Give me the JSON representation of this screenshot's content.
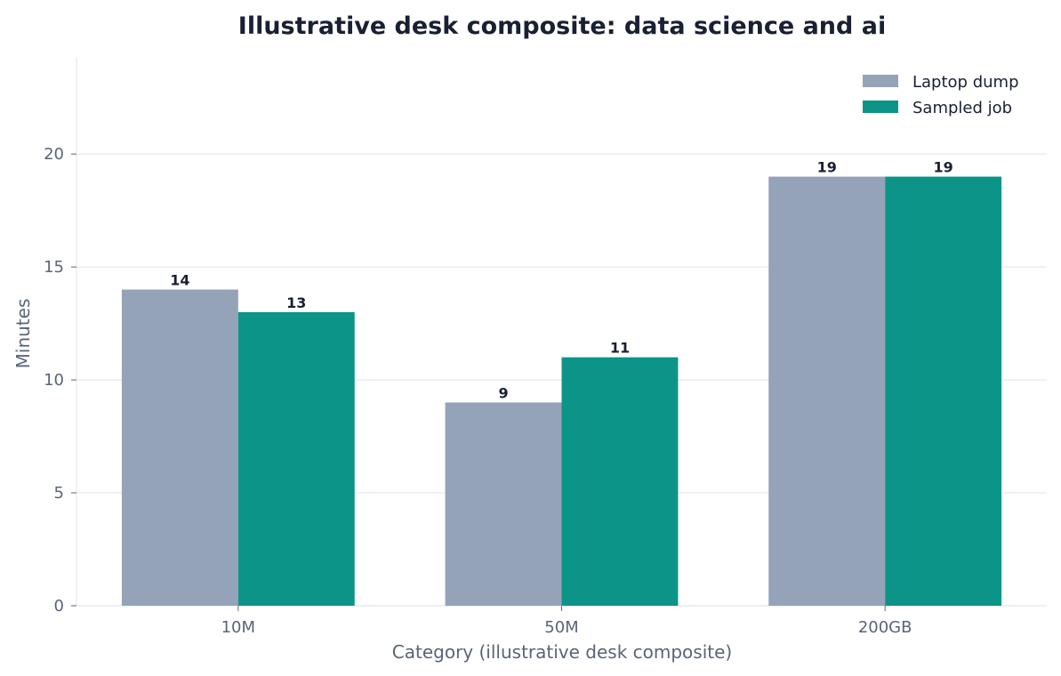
{
  "chart_data": {
    "type": "bar",
    "title": "Illustrative desk composite: data science and ai",
    "xlabel": "Category (illustrative desk composite)",
    "ylabel": "Minutes",
    "categories": [
      "10M",
      "50M",
      "200GB"
    ],
    "series": [
      {
        "name": "Laptop dump",
        "values": [
          14,
          9,
          19
        ],
        "color": "#94a3b8"
      },
      {
        "name": "Sampled job",
        "values": [
          13,
          11,
          19
        ],
        "color": "#0d9488"
      }
    ],
    "ylim": [
      0,
      24.3
    ],
    "yticks": [
      0,
      5,
      10,
      15,
      20
    ],
    "grid": "horizontal",
    "legend": "top-right"
  }
}
